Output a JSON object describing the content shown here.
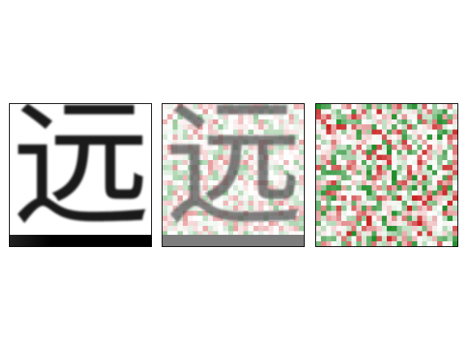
{
  "figure": {
    "character": "远",
    "panels": [
      {
        "id": "original",
        "name": "original-image-panel"
      },
      {
        "id": "overlay",
        "name": "attribution-overlay-panel"
      },
      {
        "id": "attribution",
        "name": "attribution-map-panel"
      }
    ],
    "colors": {
      "positive": "#2e8b2e",
      "negative": "#e02020",
      "ink": "#1a1a1a"
    },
    "grid_cells": 28
  }
}
